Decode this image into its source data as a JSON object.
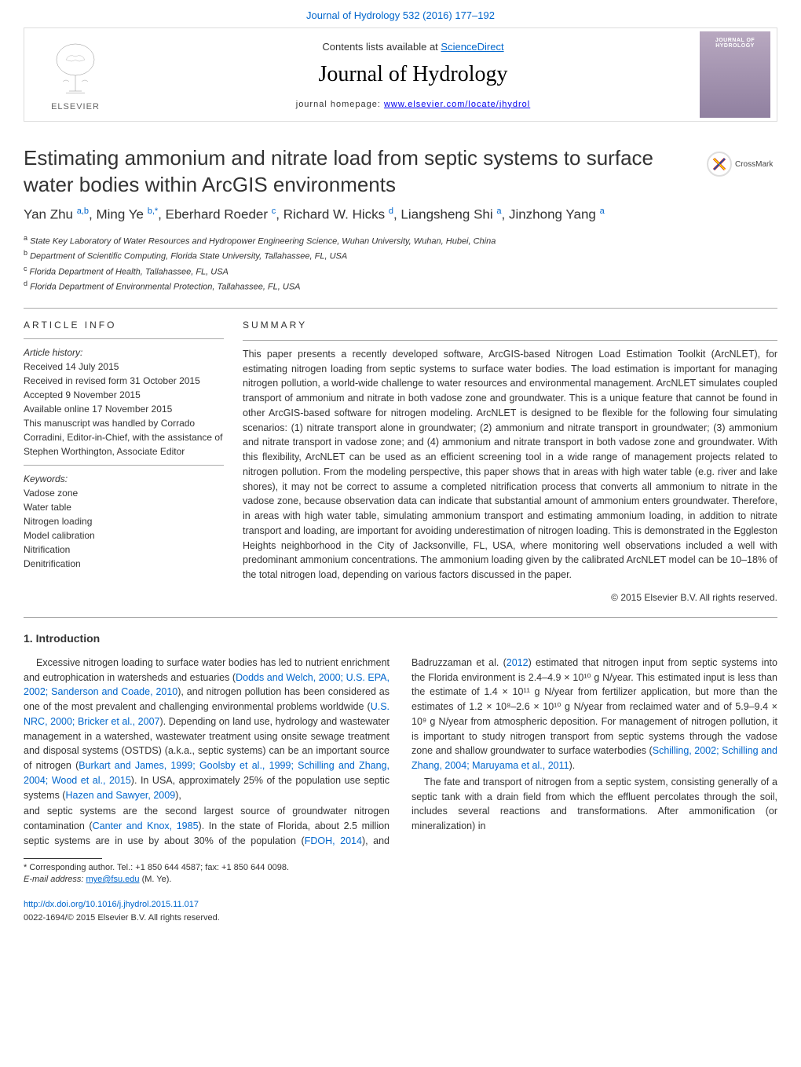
{
  "header": {
    "top_link": "Journal of Hydrology 532 (2016) 177–192",
    "contents_prefix": "Contents lists available at ",
    "contents_link": "ScienceDirect",
    "journal_name": "Journal of Hydrology",
    "homepage_prefix": "journal homepage: ",
    "homepage_link": "www.elsevier.com/locate/jhydrol",
    "elsevier_label": "ELSEVIER",
    "cover_label_top": "JOURNAL OF",
    "cover_label_bottom": "HYDROLOGY",
    "crossmark_label": "CrossMark"
  },
  "article": {
    "title": "Estimating ammonium and nitrate load from septic systems to surface water bodies within ArcGIS environments",
    "authors_html": "Yan Zhu <sup>a,b</sup>, Ming Ye <sup>b,*</sup>, Eberhard Roeder <sup>c</sup>, Richard W. Hicks <sup>d</sup>, Liangsheng Shi <sup>a</sup>, Jinzhong Yang <sup>a</sup>",
    "affiliations": [
      {
        "sup": "a",
        "text": "State Key Laboratory of Water Resources and Hydropower Engineering Science, Wuhan University, Wuhan, Hubei, China"
      },
      {
        "sup": "b",
        "text": "Department of Scientific Computing, Florida State University, Tallahassee, FL, USA"
      },
      {
        "sup": "c",
        "text": "Florida Department of Health, Tallahassee, FL, USA"
      },
      {
        "sup": "d",
        "text": "Florida Department of Environmental Protection, Tallahassee, FL, USA"
      }
    ]
  },
  "article_info": {
    "heading": "ARTICLE INFO",
    "history_label": "Article history:",
    "received": "Received 14 July 2015",
    "revised": "Received in revised form 31 October 2015",
    "accepted": "Accepted 9 November 2015",
    "online": "Available online 17 November 2015",
    "editor_note": "This manuscript was handled by Corrado Corradini, Editor-in-Chief, with the assistance of Stephen Worthington, Associate Editor",
    "keywords_label": "Keywords:",
    "keywords": [
      "Vadose zone",
      "Water table",
      "Nitrogen loading",
      "Model calibration",
      "Nitrification",
      "Denitrification"
    ]
  },
  "summary": {
    "heading": "SUMMARY",
    "text": "This paper presents a recently developed software, ArcGIS-based Nitrogen Load Estimation Toolkit (ArcNLET), for estimating nitrogen loading from septic systems to surface water bodies. The load estimation is important for managing nitrogen pollution, a world-wide challenge to water resources and environmental management. ArcNLET simulates coupled transport of ammonium and nitrate in both vadose zone and groundwater. This is a unique feature that cannot be found in other ArcGIS-based software for nitrogen modeling. ArcNLET is designed to be flexible for the following four simulating scenarios: (1) nitrate transport alone in groundwater; (2) ammonium and nitrate transport in groundwater; (3) ammonium and nitrate transport in vadose zone; and (4) ammonium and nitrate transport in both vadose zone and groundwater. With this flexibility, ArcNLET can be used as an efficient screening tool in a wide range of management projects related to nitrogen pollution. From the modeling perspective, this paper shows that in areas with high water table (e.g. river and lake shores), it may not be correct to assume a completed nitrification process that converts all ammonium to nitrate in the vadose zone, because observation data can indicate that substantial amount of ammonium enters groundwater. Therefore, in areas with high water table, simulating ammonium transport and estimating ammonium loading, in addition to nitrate transport and loading, are important for avoiding underestimation of nitrogen loading. This is demonstrated in the Eggleston Heights neighborhood in the City of Jacksonville, FL, USA, where monitoring well observations included a well with predominant ammonium concentrations. The ammonium loading given by the calibrated ArcNLET model can be 10–18% of the total nitrogen load, depending on various factors discussed in the paper.",
    "copyright": "© 2015 Elsevier B.V. All rights reserved."
  },
  "intro": {
    "heading": "1. Introduction",
    "paragraph1": "Excessive nitrogen loading to surface water bodies has led to nutrient enrichment and eutrophication in watersheds and estuaries (Dodds and Welch, 2000; U.S. EPA, 2002; Sanderson and Coade, 2010), and nitrogen pollution has been considered as one of the most prevalent and challenging environmental problems worldwide (U.S. NRC, 2000; Bricker et al., 2007). Depending on land use, hydrology and wastewater management in a watershed, wastewater treatment using onsite sewage treatment and disposal systems (OSTDS) (a.k.a., septic systems) can be an important source of nitrogen (Burkart and James, 1999; Goolsby et al., 1999; Schilling and Zhang, 2004; Wood et al., 2015). In USA, approximately 25% of the population use septic systems (Hazen and Sawyer, 2009),",
    "paragraph2": "and septic systems are the second largest source of groundwater nitrogen contamination (Canter and Knox, 1985). In the state of Florida, about 2.5 million septic systems are in use by about 30% of the population (FDOH, 2014), and Badruzzaman et al. (2012) estimated that nitrogen input from septic systems into the Florida environment is 2.4–4.9 × 10¹⁰ g N/year. This estimated input is less than the estimate of 1.4 × 10¹¹ g N/year from fertilizer application, but more than the estimates of 1.2 × 10⁸–2.6 × 10¹⁰ g N/year from reclaimed water and of 5.9–9.4 × 10⁹ g N/year from atmospheric deposition. For management of nitrogen pollution, it is important to study nitrogen transport from septic systems through the vadose zone and shallow groundwater to surface waterbodies (Schilling, 2002; Schilling and Zhang, 2004; Maruyama et al., 2011).",
    "paragraph3": "The fate and transport of nitrogen from a septic system, consisting generally of a septic tank with a drain field from which the effluent percolates through the soil, includes several reactions and transformations. After ammonification (or mineralization) in"
  },
  "footnote": {
    "corresponding_label": "* Corresponding author. Tel.: +1 850 644 4587; fax: +1 850 644 0098.",
    "email_label": "E-mail address: ",
    "email": "mye@fsu.edu",
    "email_suffix": " (M. Ye)."
  },
  "footer": {
    "doi": "http://dx.doi.org/10.1016/j.jhydrol.2015.11.017",
    "issn": "0022-1694/© 2015 Elsevier B.V. All rights reserved."
  },
  "colors": {
    "link": "#0066cc",
    "text": "#333333",
    "rule": "#aaaaaa",
    "cover_grad_top": "#b8a8c0",
    "cover_grad_bottom": "#9080a0"
  }
}
